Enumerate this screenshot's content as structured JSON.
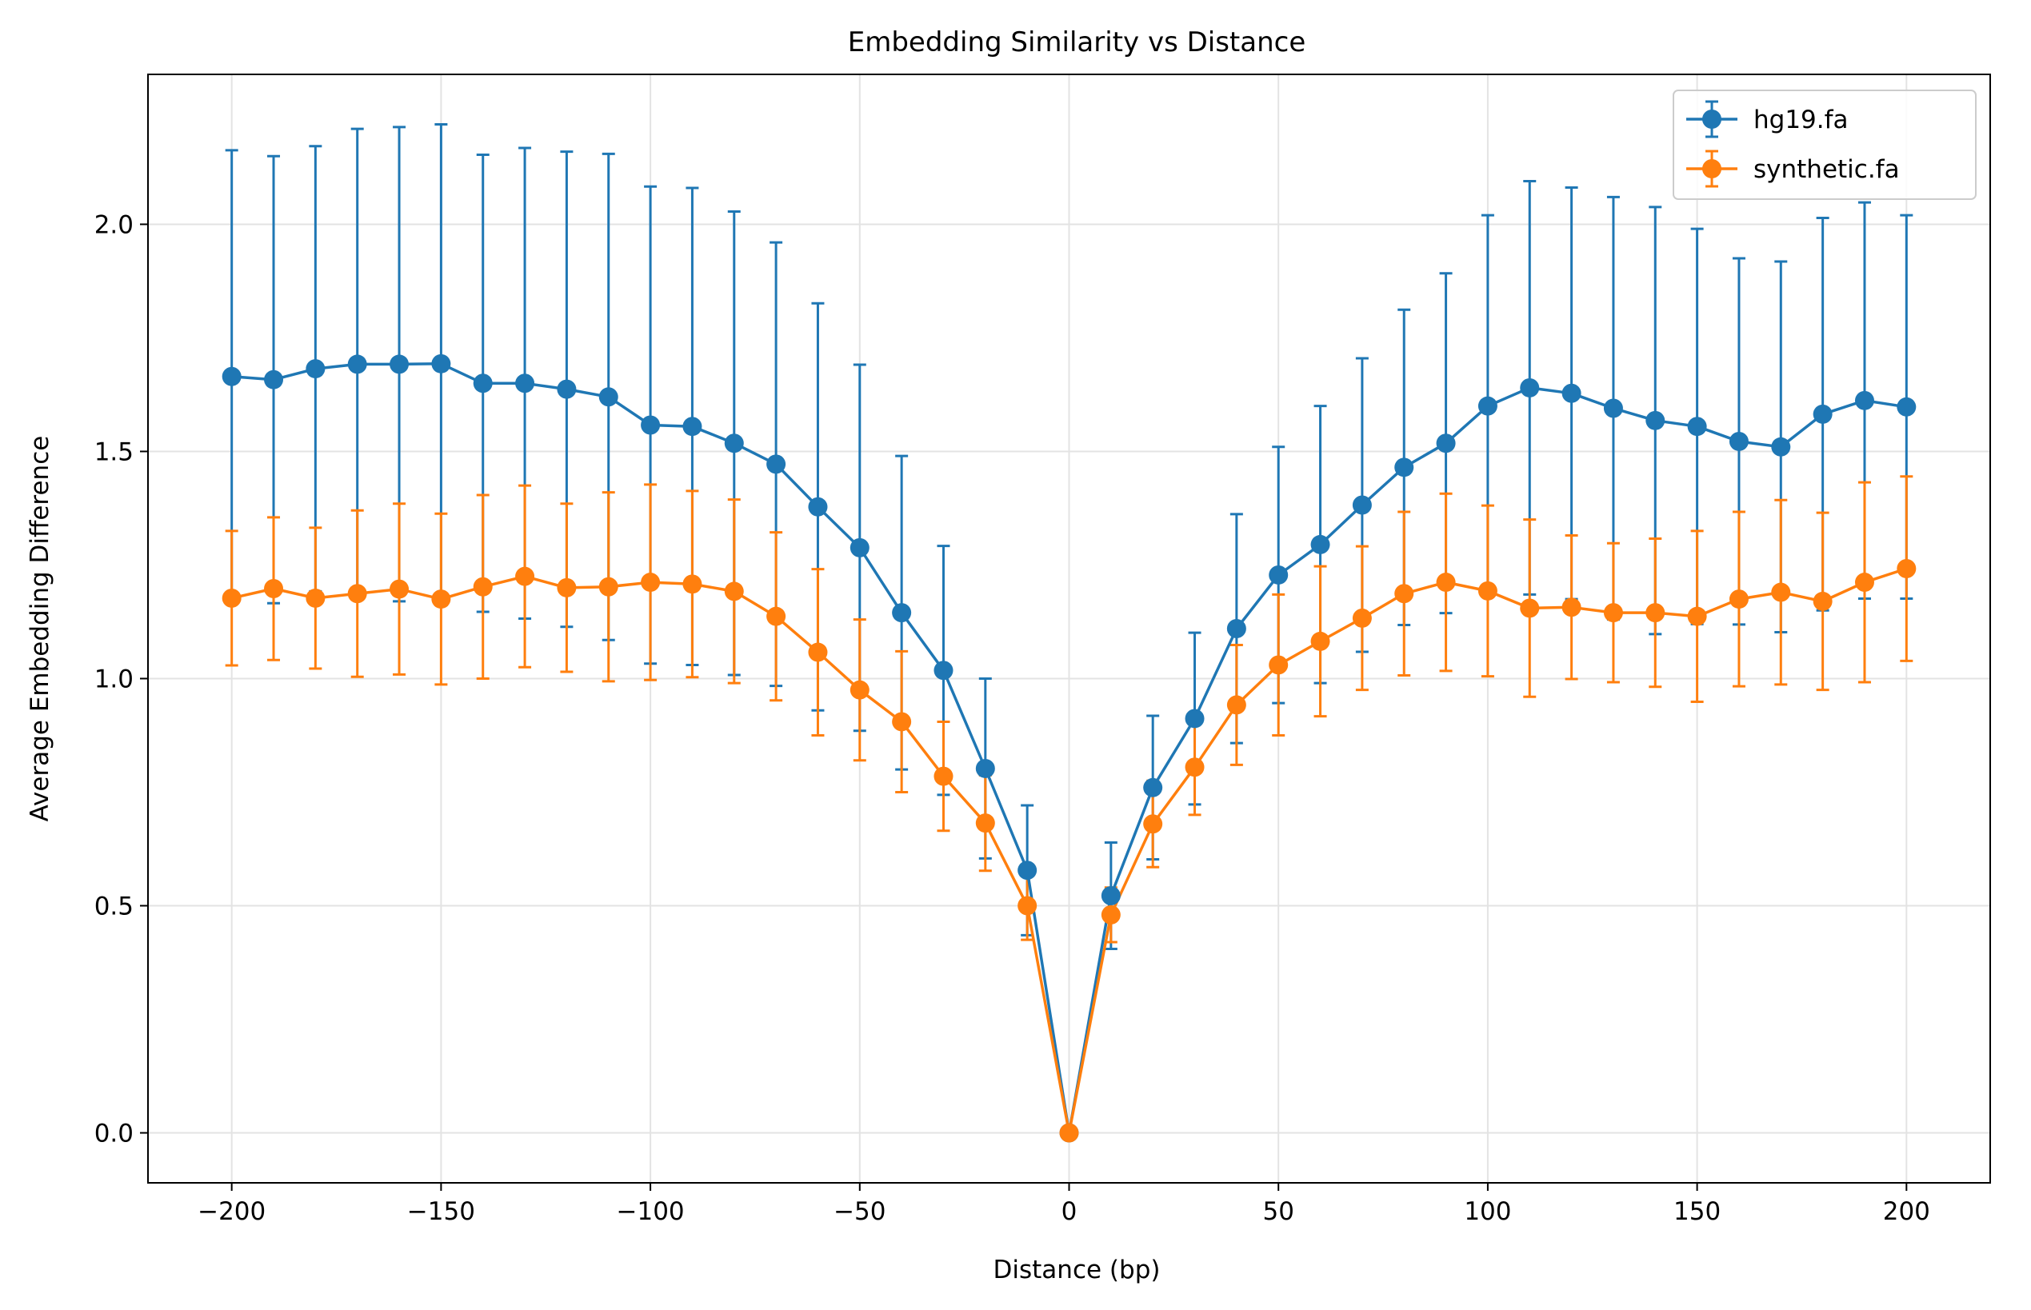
{
  "chart_data": {
    "type": "line",
    "title": "Embedding Similarity vs Distance",
    "xlabel": "Distance (bp)",
    "ylabel": "Average Embedding Difference",
    "xlim": [
      -220,
      220
    ],
    "ylim": [
      -0.11,
      2.33
    ],
    "xticks": [
      -200,
      -150,
      -100,
      -50,
      0,
      50,
      100,
      150,
      200
    ],
    "xtick_labels": [
      "−200",
      "−150",
      "−100",
      "−50",
      "0",
      "50",
      "100",
      "150",
      "200"
    ],
    "yticks": [
      0.0,
      0.5,
      1.0,
      1.5,
      2.0
    ],
    "ytick_labels": [
      "0.0",
      "0.5",
      "1.0",
      "1.5",
      "2.0"
    ],
    "grid": true,
    "legend_position": "top-right",
    "x": [
      -200,
      -190,
      -180,
      -170,
      -160,
      -150,
      -140,
      -130,
      -120,
      -110,
      -100,
      -90,
      -80,
      -70,
      -60,
      -50,
      -40,
      -30,
      -20,
      -10,
      0,
      10,
      20,
      30,
      40,
      50,
      60,
      70,
      80,
      90,
      100,
      110,
      120,
      130,
      140,
      150,
      160,
      170,
      180,
      190,
      200
    ],
    "series": [
      {
        "name": "hg19.fa",
        "color": "#1f77b4",
        "values": [
          1.665,
          1.658,
          1.682,
          1.692,
          1.692,
          1.693,
          1.65,
          1.65,
          1.637,
          1.62,
          1.558,
          1.555,
          1.518,
          1.472,
          1.378,
          1.288,
          1.145,
          1.018,
          0.802,
          0.578,
          0.0,
          0.522,
          0.76,
          0.912,
          1.11,
          1.228,
          1.295,
          1.382,
          1.465,
          1.518,
          1.6,
          1.64,
          1.628,
          1.595,
          1.568,
          1.555,
          1.522,
          1.51,
          1.582,
          1.612,
          1.598
        ],
        "error": [
          0.498,
          0.492,
          0.49,
          0.518,
          0.522,
          0.527,
          0.503,
          0.518,
          0.523,
          0.535,
          0.525,
          0.525,
          0.51,
          0.488,
          0.448,
          0.403,
          0.345,
          0.274,
          0.198,
          0.143,
          0.0,
          0.117,
          0.158,
          0.189,
          0.252,
          0.282,
          0.305,
          0.323,
          0.347,
          0.374,
          0.42,
          0.455,
          0.453,
          0.465,
          0.47,
          0.435,
          0.403,
          0.408,
          0.432,
          0.436,
          0.422
        ]
      },
      {
        "name": "synthetic.fa",
        "color": "#ff7f0e",
        "values": [
          1.177,
          1.198,
          1.177,
          1.187,
          1.197,
          1.175,
          1.202,
          1.225,
          1.2,
          1.202,
          1.212,
          1.208,
          1.192,
          1.137,
          1.058,
          0.975,
          0.905,
          0.785,
          0.682,
          0.5,
          0.0,
          0.48,
          0.68,
          0.805,
          0.942,
          1.03,
          1.082,
          1.133,
          1.187,
          1.212,
          1.193,
          1.155,
          1.157,
          1.145,
          1.145,
          1.137,
          1.175,
          1.19,
          1.17,
          1.212,
          1.242
        ],
        "error": [
          0.148,
          0.157,
          0.155,
          0.183,
          0.188,
          0.188,
          0.202,
          0.2,
          0.185,
          0.208,
          0.215,
          0.205,
          0.202,
          0.185,
          0.183,
          0.155,
          0.155,
          0.12,
          0.105,
          0.075,
          0.0,
          0.06,
          0.095,
          0.105,
          0.132,
          0.155,
          0.165,
          0.158,
          0.18,
          0.195,
          0.188,
          0.195,
          0.158,
          0.153,
          0.163,
          0.188,
          0.192,
          0.203,
          0.195,
          0.22,
          0.203
        ]
      }
    ]
  }
}
